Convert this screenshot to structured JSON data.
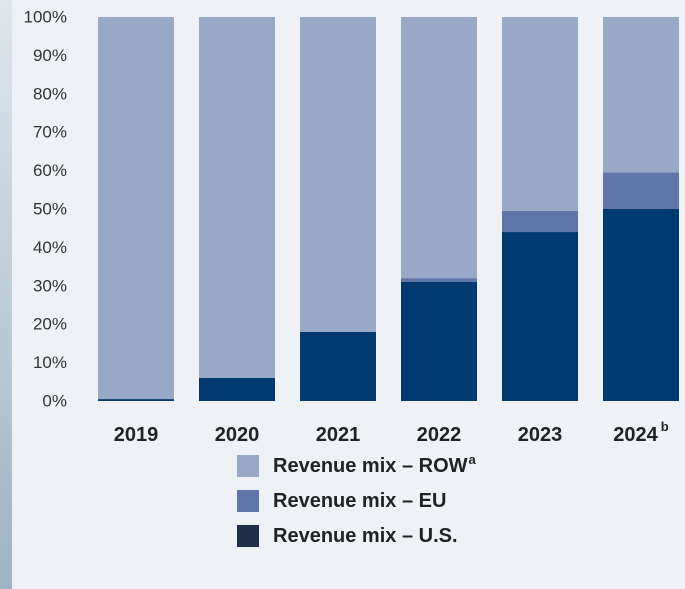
{
  "chart_data": {
    "type": "stacked_bar",
    "categories": [
      "2019",
      "2020",
      "2021",
      "2022",
      "2023",
      "2024"
    ],
    "category_notes": [
      null,
      null,
      null,
      null,
      null,
      "b"
    ],
    "series": [
      {
        "name": "Revenue mix – U.S.",
        "color": "#003a70",
        "legend_color": "#1f2d47",
        "values": [
          0.5,
          6,
          18,
          31,
          44,
          50
        ]
      },
      {
        "name": "Revenue mix – EU",
        "color": "#6076a8",
        "values": [
          0,
          0,
          0,
          1,
          5.5,
          9.5
        ]
      },
      {
        "name": "Revenue mix – ROW",
        "name_note": "a",
        "color": "#98a9c8",
        "values": [
          99.5,
          94,
          82,
          68,
          50.5,
          40.5
        ]
      }
    ],
    "ylim": [
      0,
      100
    ],
    "yticks": [
      {
        "value": 0,
        "label": "0%"
      },
      {
        "value": 10,
        "label": "10%"
      },
      {
        "value": 20,
        "label": "20%"
      },
      {
        "value": 30,
        "label": "30%"
      },
      {
        "value": 40,
        "label": "40%"
      },
      {
        "value": 50,
        "label": "50%"
      },
      {
        "value": 60,
        "label": "60%"
      },
      {
        "value": 70,
        "label": "70%"
      },
      {
        "value": 80,
        "label": "80%"
      },
      {
        "value": 90,
        "label": "90%"
      },
      {
        "value": 100,
        "label": "100%"
      }
    ],
    "grid": false
  }
}
